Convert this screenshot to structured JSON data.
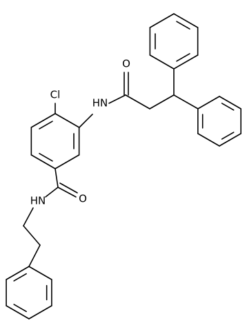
{
  "atoms": [
    {
      "label": "Cl"
    },
    {
      "label": "HN"
    },
    {
      "label": "O"
    },
    {
      "label": "O"
    },
    {
      "label": "HN"
    }
  ]
}
